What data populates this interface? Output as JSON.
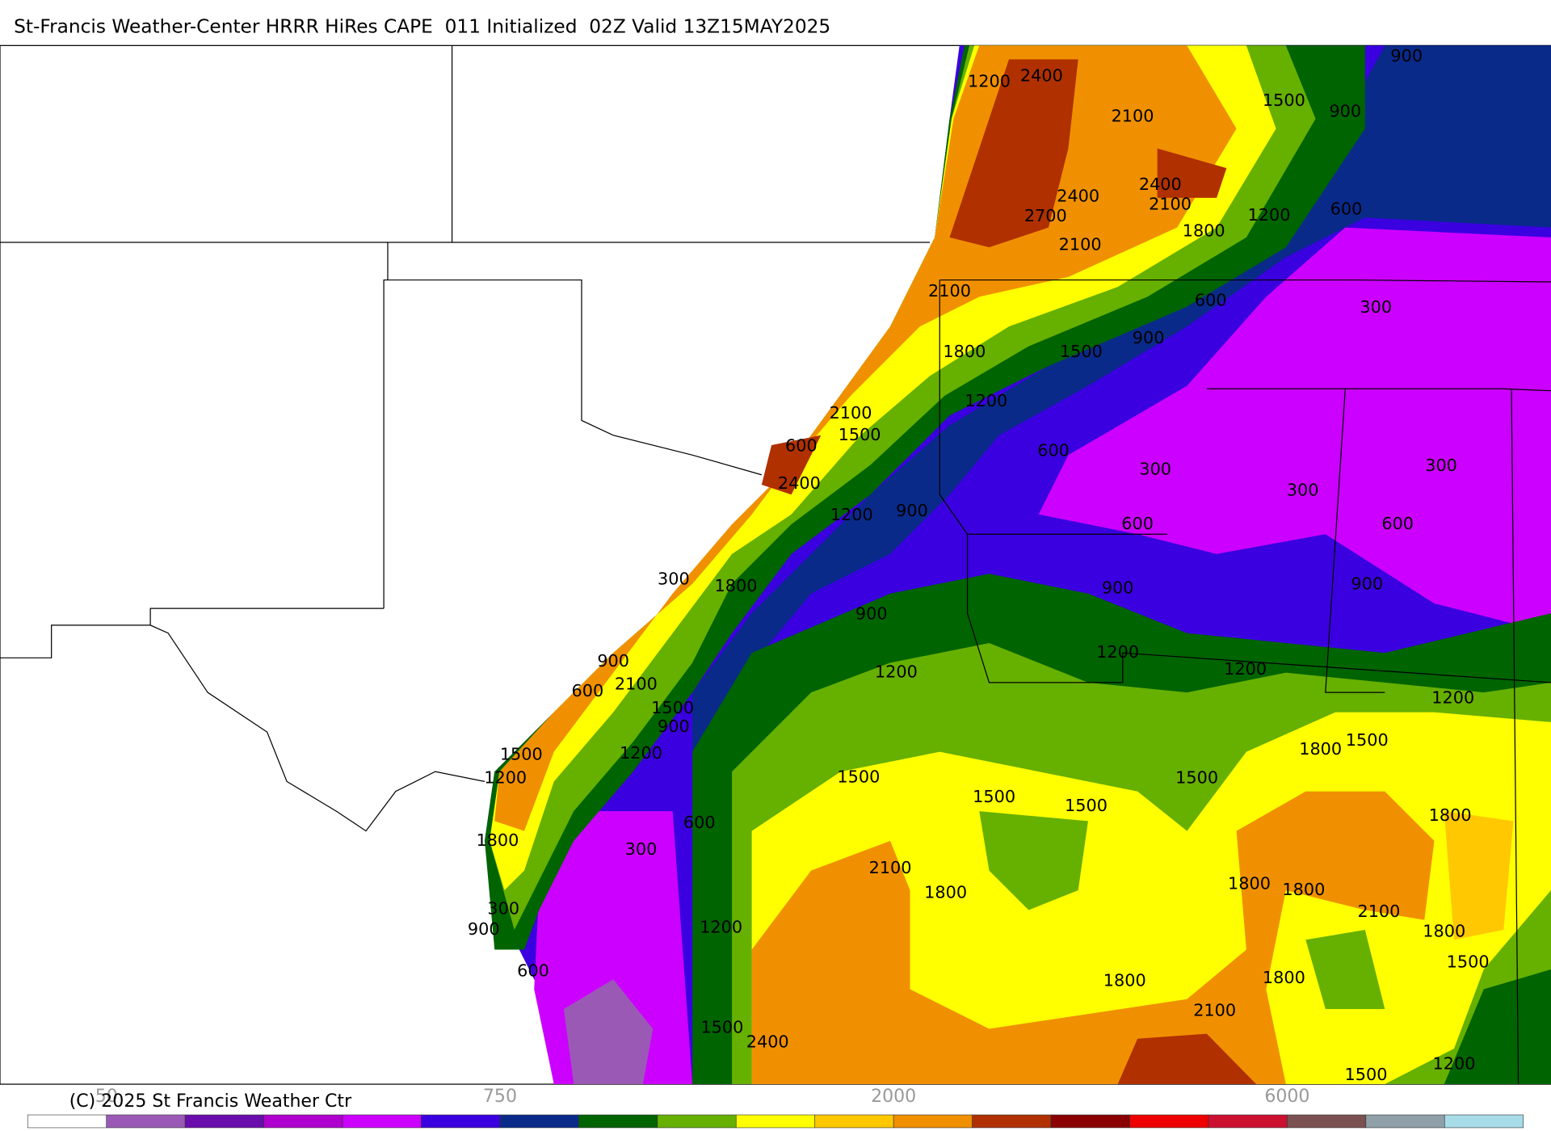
{
  "header": {
    "title": "St-Francis Weather-Center HRRR HiRes CAPE  011 Initialized  02Z Valid 13Z15MAY2025"
  },
  "contour_labels": [
    1200,
    2400,
    2100,
    1500,
    900,
    900,
    2400,
    2400,
    2700,
    2100,
    2100,
    1800,
    1200,
    600,
    2100,
    600,
    300,
    1800,
    1500,
    900,
    1200,
    2100,
    1500,
    600,
    2400,
    600,
    300,
    300,
    300,
    1200,
    900,
    600,
    600,
    300,
    1800,
    900,
    900,
    900,
    1200,
    1200,
    1200,
    900,
    2100,
    600,
    1500,
    900,
    1200,
    1500,
    1200,
    1200,
    1800,
    1500,
    1500,
    1500,
    1500,
    1500,
    600,
    1800,
    300,
    1800,
    2100,
    1800,
    1800,
    1800,
    2100,
    300,
    900,
    1200,
    1800,
    1500,
    600,
    1800,
    1800,
    2100,
    1500,
    2400,
    1500,
    1200
  ],
  "colorbar": {
    "colors": [
      "#ffffff",
      "#9b59b6",
      "#6a0dad",
      "#b000d0",
      "#cc00ff",
      "#3a00e0",
      "#0a2a8a",
      "#006400",
      "#66b000",
      "#ffff00",
      "#ffc800",
      "#f09000",
      "#b03000",
      "#8b0000",
      "#ee0000",
      "#cc1030",
      "#7a5050",
      "#8fa0a8",
      "#a8dce8"
    ],
    "labels": [
      50,
      750,
      2000,
      6000
    ]
  },
  "footer": {
    "copyright": "(C) 2025 St Francis Weather Ctr"
  }
}
